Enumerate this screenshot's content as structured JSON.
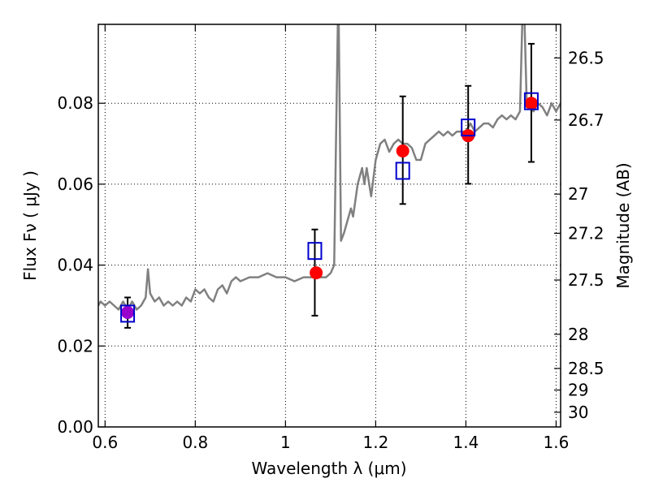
{
  "chart_data": {
    "type": "scatter",
    "title": "",
    "xlabel": "Wavelength  λ (μm)",
    "ylabel": "Flux  Fν  ( μJy )",
    "y2label": "Magnitude (AB)",
    "xlim": [
      0.585,
      1.61
    ],
    "ylim": [
      0.0,
      0.0995
    ],
    "x_ticks": [
      0.6,
      0.8,
      1.0,
      1.2,
      1.4,
      1.6
    ],
    "x_tick_labels": [
      "0.6",
      "0.8",
      "1",
      "1.2",
      "1.4",
      "1.6"
    ],
    "y_ticks": [
      0.0,
      0.02,
      0.04,
      0.06,
      0.08
    ],
    "y_tick_labels": [
      "0.00",
      "0.02",
      "0.04",
      "0.06",
      "0.08"
    ],
    "y2_ticks": [
      26.5,
      26.7,
      27,
      27.2,
      27.5,
      28,
      28.5,
      29,
      30
    ],
    "y2_tick_labels": [
      "26.5",
      "26.7",
      "27",
      "27.2",
      "27.5",
      "28",
      "28.5",
      "29",
      "30"
    ],
    "grid": true,
    "colors": {
      "spectrum": "#808080",
      "model_points": "#ff0000",
      "observed_boxes": "#0000cc",
      "errorbars": "#000000",
      "first_point_overlap": "#9900cc"
    },
    "series": [
      {
        "kind": "spectrum",
        "x": [
          0.585,
          0.59,
          0.6,
          0.61,
          0.62,
          0.63,
          0.64,
          0.65,
          0.66,
          0.67,
          0.68,
          0.69,
          0.695,
          0.7,
          0.71,
          0.72,
          0.73,
          0.74,
          0.75,
          0.76,
          0.77,
          0.78,
          0.79,
          0.8,
          0.81,
          0.82,
          0.83,
          0.84,
          0.85,
          0.86,
          0.87,
          0.88,
          0.89,
          0.9,
          0.92,
          0.94,
          0.96,
          0.98,
          1.0,
          1.02,
          1.04,
          1.06,
          1.08,
          1.09,
          1.1,
          1.108,
          1.112,
          1.116,
          1.118,
          1.12,
          1.123,
          1.13,
          1.14,
          1.145,
          1.15,
          1.16,
          1.17,
          1.175,
          1.18,
          1.19,
          1.2,
          1.21,
          1.22,
          1.23,
          1.24,
          1.25,
          1.26,
          1.27,
          1.28,
          1.29,
          1.3,
          1.31,
          1.32,
          1.33,
          1.34,
          1.35,
          1.36,
          1.37,
          1.38,
          1.39,
          1.4,
          1.41,
          1.42,
          1.43,
          1.44,
          1.45,
          1.46,
          1.47,
          1.48,
          1.49,
          1.5,
          1.51,
          1.52,
          1.525,
          1.53,
          1.535,
          1.54,
          1.55,
          1.56,
          1.57,
          1.58,
          1.59,
          1.6,
          1.61
        ],
        "y": [
          0.03,
          0.031,
          0.03,
          0.031,
          0.03,
          0.029,
          0.031,
          0.029,
          0.031,
          0.029,
          0.03,
          0.032,
          0.039,
          0.033,
          0.031,
          0.032,
          0.03,
          0.031,
          0.03,
          0.031,
          0.03,
          0.032,
          0.031,
          0.034,
          0.033,
          0.034,
          0.032,
          0.031,
          0.034,
          0.035,
          0.033,
          0.036,
          0.037,
          0.036,
          0.037,
          0.037,
          0.038,
          0.037,
          0.037,
          0.036,
          0.037,
          0.037,
          0.037,
          0.037,
          0.038,
          0.04,
          0.07,
          0.1,
          0.1,
          0.08,
          0.046,
          0.048,
          0.052,
          0.054,
          0.052,
          0.06,
          0.064,
          0.06,
          0.064,
          0.057,
          0.066,
          0.07,
          0.071,
          0.068,
          0.07,
          0.071,
          0.07,
          0.07,
          0.069,
          0.066,
          0.066,
          0.07,
          0.071,
          0.072,
          0.073,
          0.072,
          0.073,
          0.072,
          0.073,
          0.073,
          0.073,
          0.075,
          0.073,
          0.074,
          0.075,
          0.075,
          0.074,
          0.076,
          0.077,
          0.076,
          0.077,
          0.076,
          0.078,
          0.1,
          0.1,
          0.079,
          0.079,
          0.078,
          0.08,
          0.079,
          0.077,
          0.08,
          0.078,
          0.08
        ]
      },
      {
        "kind": "observed",
        "x": [
          0.65,
          1.065,
          1.26,
          1.405,
          1.545
        ],
        "y": [
          0.028,
          0.0435,
          0.0633,
          0.074,
          0.0805
        ],
        "err_low": [
          0.0245,
          0.0275,
          0.0551,
          0.0601,
          0.0655
        ],
        "err_high": [
          0.032,
          0.0488,
          0.0817,
          0.0843,
          0.0947
        ]
      },
      {
        "kind": "model",
        "x": [
          0.65,
          1.068,
          1.26,
          1.405,
          1.545
        ],
        "y": [
          0.0283,
          0.0381,
          0.0682,
          0.072,
          0.08
        ]
      }
    ]
  }
}
